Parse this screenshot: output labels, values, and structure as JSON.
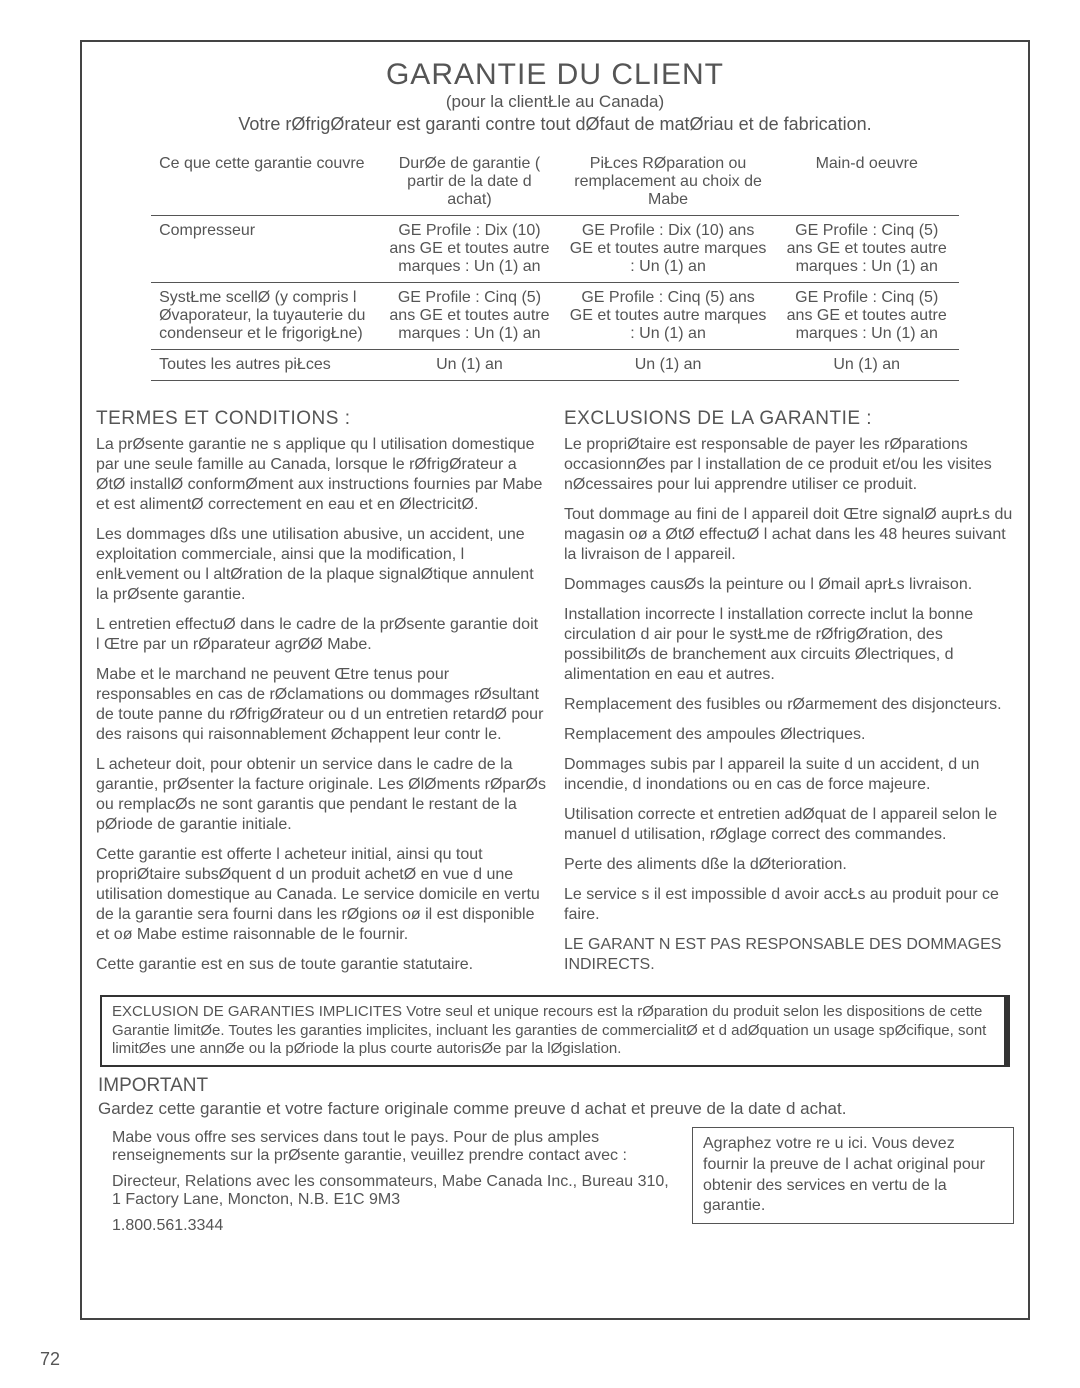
{
  "page_number": "72",
  "header": {
    "title": "GARANTIE DU CLIENT",
    "subtitle": "(pour la clientŁle au Canada)",
    "intro": "Votre rØfrigØrateur est garanti contre tout dØfaut de matØriau et de fabrication."
  },
  "table": {
    "headers": {
      "c1": "Ce que cette garantie couvre",
      "c2": "DurØe de garantie ( partir de la date d achat)",
      "c3": "PiŁces RØparation ou remplacement au choix de Mabe",
      "c4": "Main-d oeuvre"
    },
    "rows": [
      {
        "c1": "Compresseur",
        "c2": "GE Profile : Dix (10) ans GE et toutes autre marques : Un (1) an",
        "c3": "GE Profile : Dix (10) ans GE et toutes autre marques : Un (1) an",
        "c4": "GE Profile : Cinq (5) ans GE et toutes autre marques : Un (1) an"
      },
      {
        "c1": "SystŁme scellØ (y compris l Øvaporateur, la tuyauterie du condenseur et le frigorigŁne)",
        "c2": "GE Profile : Cinq (5) ans GE et toutes autre marques : Un (1) an",
        "c3": "GE Profile : Cinq (5) ans GE et toutes autre marques : Un (1) an",
        "c4": "GE Profile : Cinq (5) ans GE et toutes autre marques : Un (1) an"
      },
      {
        "c1": "Toutes les autres piŁces",
        "c2": "Un (1) an",
        "c3": "Un (1) an",
        "c4": "Un (1) an"
      }
    ]
  },
  "left": {
    "title": "TERMES ET CONDITIONS :",
    "p1": "La prØsente garantie ne s applique qu  l utilisation domestique par une seule famille au Canada, lorsque le rØfrigØrateur a ØtØ installØ conformØment aux instructions fournies par Mabe et est alimentØ correctement en eau et en ØlectricitØ.",
    "p2": "Les dommages dßs  une utilisation abusive, un accident, une exploitation commerciale, ainsi que la modification, l enlŁvement ou l altØration de la plaque signalØtique annulent la prØsente garantie.",
    "p3": "L entretien effectuØ dans le cadre de la prØsente garantie doit l Œtre par un rØparateur agrØØ Mabe.",
    "p4": "Mabe et le marchand ne peuvent Œtre tenus pour responsables en cas de rØclamations ou dommages rØsultant de toute panne du rØfrigØrateur ou d un entretien retardØ pour des raisons qui raisonnablement Øchappent  leur contr le.",
    "p5": "L acheteur doit, pour obtenir un service dans le cadre de la garantie, prØsenter la facture originale. Les ØlØments rØparØs ou remplacØs ne sont garantis que pendant le restant de la pØriode de garantie initiale.",
    "p6": "Cette garantie est offerte  l acheteur initial, ainsi qu  tout propriØtaire subsØquent d un produit achetØ en vue d une utilisation domestique au Canada. Le service  domicile en vertu de la garantie sera fourni dans les rØgions oø il est disponible et oø Mabe estime raisonnable de le fournir.",
    "p7": "Cette garantie est en sus de toute garantie statutaire."
  },
  "right": {
    "title": "EXCLUSIONS DE LA GARANTIE :",
    "p1": "Le propriØtaire est responsable de payer les rØparations occasionnØes par l installation de ce produit et/ou les visites nØcessaires pour lui apprendre  utiliser ce produit.",
    "p2": "Tout dommage au fini de l appareil doit Œtre signalØ auprŁs du magasin oø a ØtØ effectuØ l achat dans les 48 heures suivant la livraison de l appareil.",
    "p3": "Dommages causØs  la peinture ou  l Ømail aprŁs livraison.",
    "p4": "Installation incorrecte l installation correcte inclut la bonne circulation d air pour le systŁme de rØfrigØration, des possibilitØs de branchement aux circuits Ølectriques, d alimentation en eau et autres.",
    "p5": "Remplacement des fusibles ou rØarmement des disjoncteurs.",
    "p6": "Remplacement des ampoules Ølectriques.",
    "p7": "Dommages subis par l appareil  la suite d un accident, d un incendie, d inondations ou en cas de force majeure.",
    "p8": "Utilisation correcte et entretien adØquat de l appareil selon le manuel d utilisation, rØglage correct des commandes.",
    "p9": "Perte des aliments dße  la dØterioration.",
    "p10": "Le service s il est impossible d avoir accŁs au produit pour ce faire.",
    "p11": "LE GARANT N EST PAS RESPONSABLE DES DOMMAGES INDIRECTS."
  },
  "exclusion_box": "EXCLUSION DE GARANTIES IMPLICITES Votre seul et unique recours est la rØparation du produit selon les dispositions de cette Garantie limitØe. Toutes les garanties implicites, incluant les garanties de commercialitØ et d adØquation  un usage spØcifique, sont limitØes  une annØe ou  la pØriode la plus courte autorisØe par la lØgislation.",
  "important": {
    "title": "IMPORTANT",
    "line": "Gardez cette garantie et votre facture originale comme preuve d achat et preuve de la date d achat.",
    "left1": "Mabe vous offre ses services dans tout le pays. Pour de plus amples renseignements sur la prØsente garantie, veuillez prendre contact avec :",
    "left2": "Directeur, Relations avec les consommateurs, Mabe Canada Inc., Bureau 310, 1 Factory Lane, Moncton, N.B. E1C 9M3",
    "left3": "1.800.561.3344",
    "receipt": "Agraphez votre re u ici. Vous devez fournir la preuve de l achat original pour obtenir des services en vertu de la garantie."
  }
}
